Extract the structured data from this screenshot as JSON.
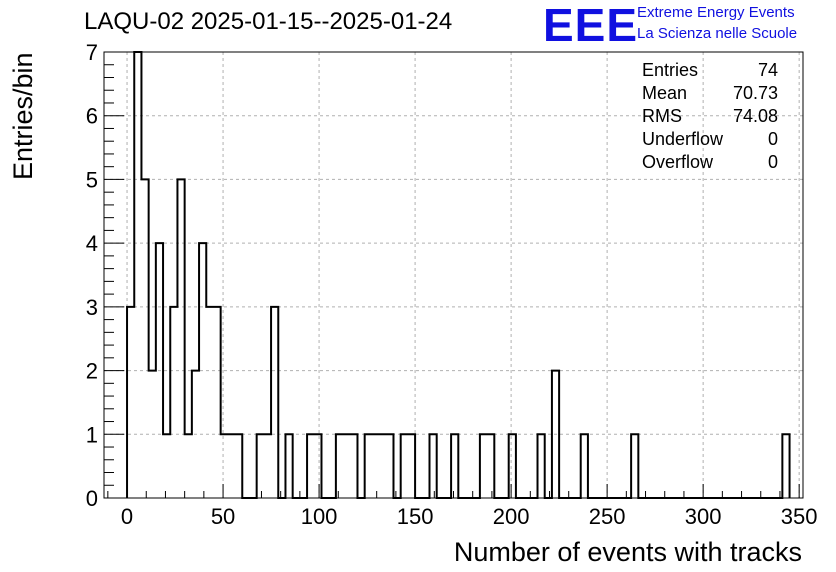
{
  "header": {
    "title": "LAQU-02 2025-01-15--2025-01-24",
    "logo_text": "EEE",
    "org_line1": "Extreme Energy Events",
    "org_line2": "La Scienza nelle Scuole",
    "brand_color": "#1010e0"
  },
  "stats": {
    "entries_label": "Entries",
    "entries_value": "74",
    "mean_label": "Mean",
    "mean_value": "70.73",
    "rms_label": "RMS",
    "rms_value": "74.08",
    "underflow_label": "Underflow",
    "underflow_value": "0",
    "overflow_label": "Overflow",
    "overflow_value": "0"
  },
  "chart_data": {
    "type": "bar",
    "histogram_style": "step",
    "xlabel": "Number of events with tracks",
    "ylabel": "Entries/bin",
    "xlim": [
      -12,
      352
    ],
    "ylim": [
      0,
      7
    ],
    "x_ticks": [
      0,
      50,
      100,
      150,
      200,
      250,
      300,
      350
    ],
    "y_ticks": [
      0,
      1,
      2,
      3,
      4,
      5,
      6,
      7
    ],
    "grid": true,
    "bin_width": 3.75,
    "bins": [
      {
        "x": 0,
        "v": 3
      },
      {
        "x": 3.75,
        "v": 7
      },
      {
        "x": 7.5,
        "v": 5
      },
      {
        "x": 11.25,
        "v": 2
      },
      {
        "x": 15,
        "v": 4
      },
      {
        "x": 18.75,
        "v": 1
      },
      {
        "x": 22.5,
        "v": 3
      },
      {
        "x": 26.25,
        "v": 5
      },
      {
        "x": 30,
        "v": 1
      },
      {
        "x": 33.75,
        "v": 2
      },
      {
        "x": 37.5,
        "v": 4
      },
      {
        "x": 41.25,
        "v": 3
      },
      {
        "x": 45,
        "v": 3
      },
      {
        "x": 48.75,
        "v": 1
      },
      {
        "x": 52.5,
        "v": 1
      },
      {
        "x": 56.25,
        "v": 1
      },
      {
        "x": 67.5,
        "v": 1
      },
      {
        "x": 71.25,
        "v": 1
      },
      {
        "x": 75,
        "v": 3
      },
      {
        "x": 82.5,
        "v": 1
      },
      {
        "x": 93.75,
        "v": 1
      },
      {
        "x": 97.5,
        "v": 1
      },
      {
        "x": 108.75,
        "v": 1
      },
      {
        "x": 112.5,
        "v": 1
      },
      {
        "x": 116.25,
        "v": 1
      },
      {
        "x": 123.75,
        "v": 1
      },
      {
        "x": 127.5,
        "v": 1
      },
      {
        "x": 131.25,
        "v": 1
      },
      {
        "x": 135,
        "v": 1
      },
      {
        "x": 142.5,
        "v": 1
      },
      {
        "x": 146.25,
        "v": 1
      },
      {
        "x": 157.5,
        "v": 1
      },
      {
        "x": 168.75,
        "v": 1
      },
      {
        "x": 183.75,
        "v": 1
      },
      {
        "x": 187.5,
        "v": 1
      },
      {
        "x": 198.75,
        "v": 1
      },
      {
        "x": 213.75,
        "v": 1
      },
      {
        "x": 221.25,
        "v": 2
      },
      {
        "x": 236.25,
        "v": 1
      },
      {
        "x": 262.5,
        "v": 1
      },
      {
        "x": 341.25,
        "v": 1
      }
    ]
  }
}
